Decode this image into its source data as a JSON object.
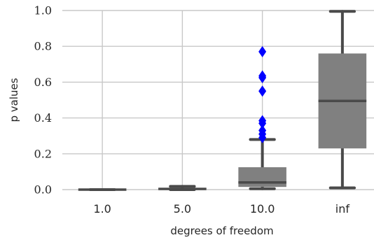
{
  "chart_data": {
    "type": "box",
    "xlabel": "degrees of freedom",
    "ylabel": "p values",
    "ylim": [
      0,
      1.0
    ],
    "yticks": [
      "0.0",
      "0.2",
      "0.4",
      "0.6",
      "0.8",
      "1.0"
    ],
    "categories": [
      "1.0",
      "5.0",
      "10.0",
      "inf"
    ],
    "grid": true,
    "box_color": "#808080",
    "line_color": "#4a4a4a",
    "flier_color": "#0000ff",
    "boxes": [
      {
        "category": "1.0",
        "whislo": 0.0,
        "q1": 0.0,
        "med": 0.0,
        "q3": 0.0,
        "whishi": 0.0,
        "fliers": []
      },
      {
        "category": "5.0",
        "whislo": 0.0,
        "q1": 0.002,
        "med": 0.004,
        "q3": 0.008,
        "whishi": 0.018,
        "fliers": []
      },
      {
        "category": "10.0",
        "whislo": 0.005,
        "q1": 0.015,
        "med": 0.04,
        "q3": 0.125,
        "whishi": 0.28,
        "fliers": [
          0.29,
          0.31,
          0.33,
          0.37,
          0.385,
          0.55,
          0.625,
          0.635,
          0.77
        ]
      },
      {
        "category": "inf",
        "whislo": 0.01,
        "q1": 0.23,
        "med": 0.495,
        "q3": 0.76,
        "whishi": 0.995,
        "fliers": []
      }
    ]
  }
}
